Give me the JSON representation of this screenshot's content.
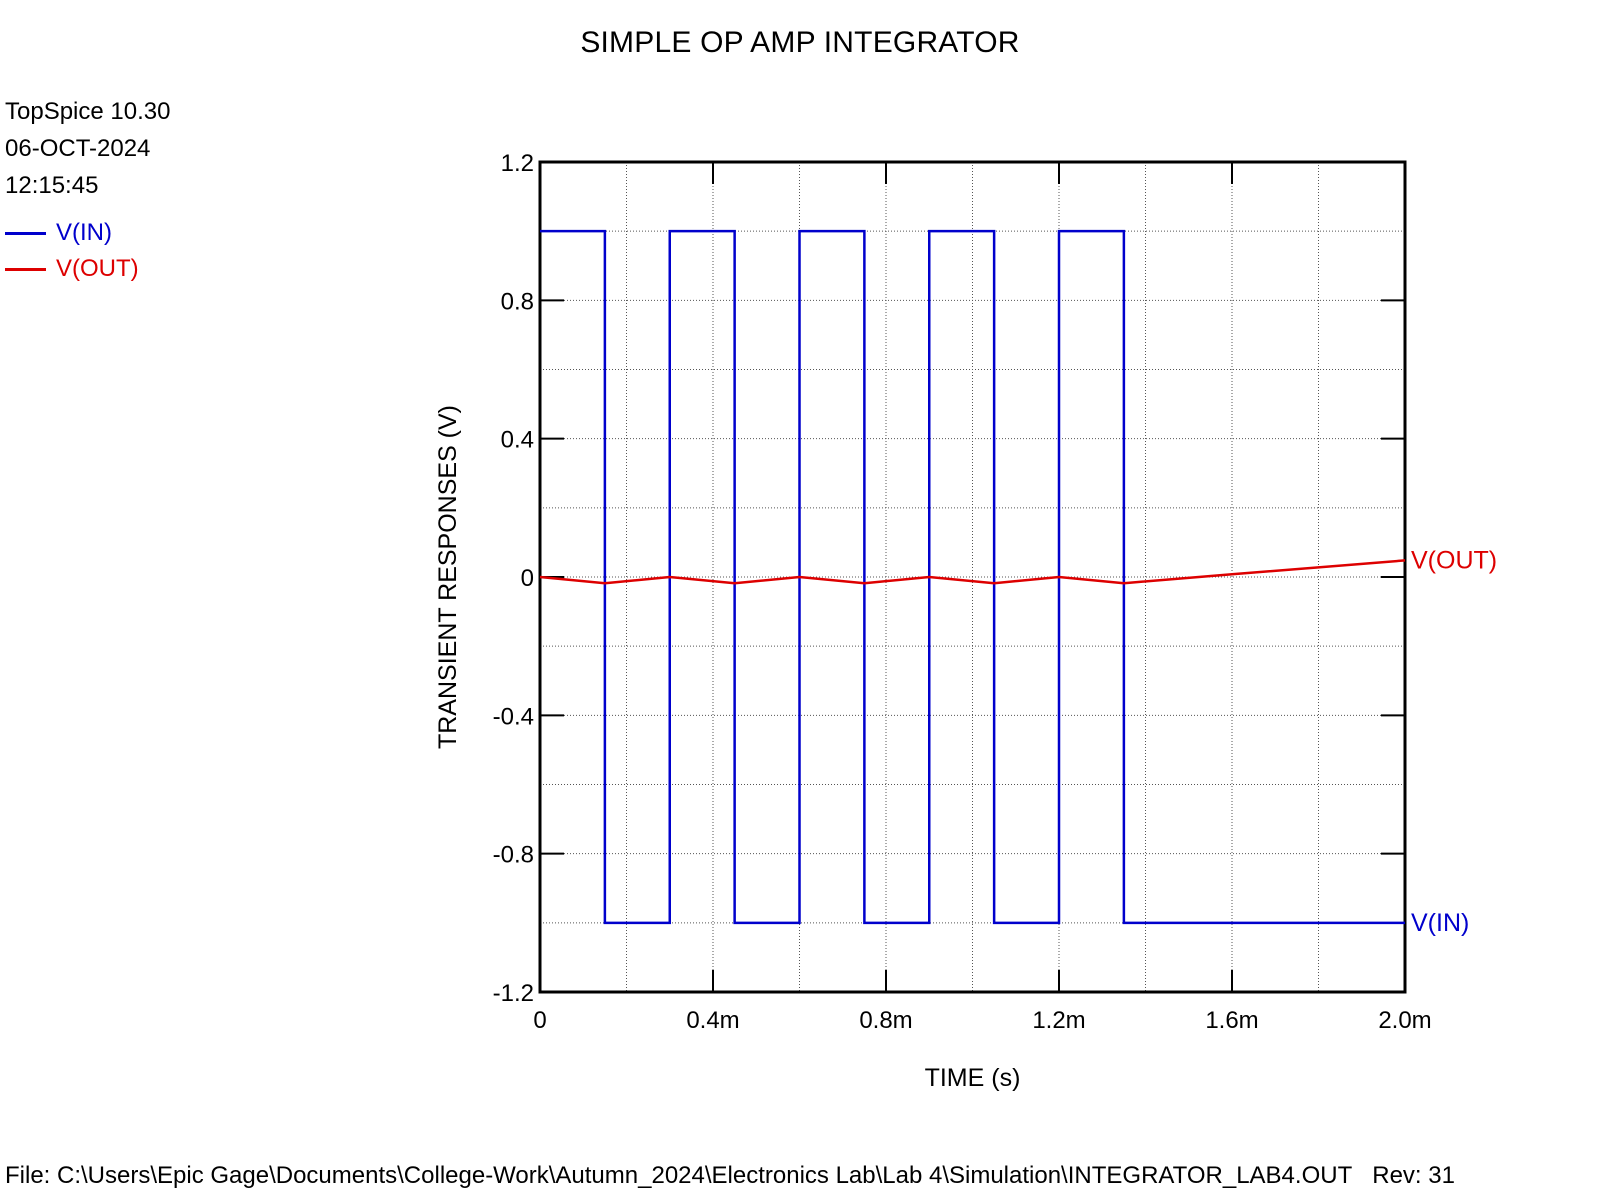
{
  "header": {
    "title": "SIMPLE OP AMP INTEGRATOR",
    "program": "TopSpice 10.30",
    "date": "06-OCT-2024",
    "time": "12:15:45"
  },
  "legend": [
    {
      "name": "V(IN)",
      "color": "#0000cc"
    },
    {
      "name": "V(OUT)",
      "color": "#dd0000"
    }
  ],
  "footer": {
    "file": "File: C:\\Users\\Epic Gage\\Documents\\College-Work\\Autumn_2024\\Electronics Lab\\Lab 4\\Simulation\\INTEGRATOR_LAB4.OUT",
    "rev": "Rev: 31"
  },
  "chart_data": {
    "type": "line",
    "title": "SIMPLE OP AMP INTEGRATOR",
    "xlabel": "TIME  (s)",
    "ylabel": "TRANSIENT RESPONSES  (V)",
    "xlim": [
      0,
      0.002
    ],
    "ylim": [
      -1.2,
      1.2
    ],
    "x_ticks": [
      0,
      0.0004,
      0.0008,
      0.0012,
      0.0016,
      0.002
    ],
    "x_tick_labels": [
      "0",
      "0.4m",
      "0.8m",
      "1.2m",
      "1.6m",
      "2.0m"
    ],
    "y_ticks": [
      1.2,
      0.8,
      0.4,
      0,
      -0.4,
      -0.8,
      -1.2
    ],
    "y_tick_labels": [
      "1.2",
      "0.8",
      "0.4",
      "0",
      "-0.4",
      "-0.8",
      "-1.2"
    ],
    "grid": true,
    "legend_position": "top-left",
    "series": [
      {
        "name": "V(IN)",
        "color": "#0000cc",
        "x": [
          0,
          0.00015,
          0.00015,
          0.0003,
          0.0003,
          0.00045,
          0.00045,
          0.0006,
          0.0006,
          0.00075,
          0.00075,
          0.0009,
          0.0009,
          0.00105,
          0.00105,
          0.0012,
          0.0012,
          0.00135,
          0.00135,
          0.002
        ],
        "values": [
          1,
          1,
          -1,
          -1,
          1,
          1,
          -1,
          -1,
          1,
          1,
          -1,
          -1,
          1,
          1,
          -1,
          -1,
          1,
          1,
          -1,
          -1
        ]
      },
      {
        "name": "V(OUT)",
        "color": "#dd0000",
        "x": [
          0,
          0.00015,
          0.0003,
          0.00045,
          0.0006,
          0.00075,
          0.0009,
          0.00105,
          0.0012,
          0.00135,
          0.0016,
          0.002
        ],
        "values": [
          0,
          -0.018,
          0.0,
          -0.018,
          0.0,
          -0.018,
          0.0,
          -0.018,
          0.0,
          -0.018,
          0.008,
          0.048
        ]
      }
    ]
  }
}
